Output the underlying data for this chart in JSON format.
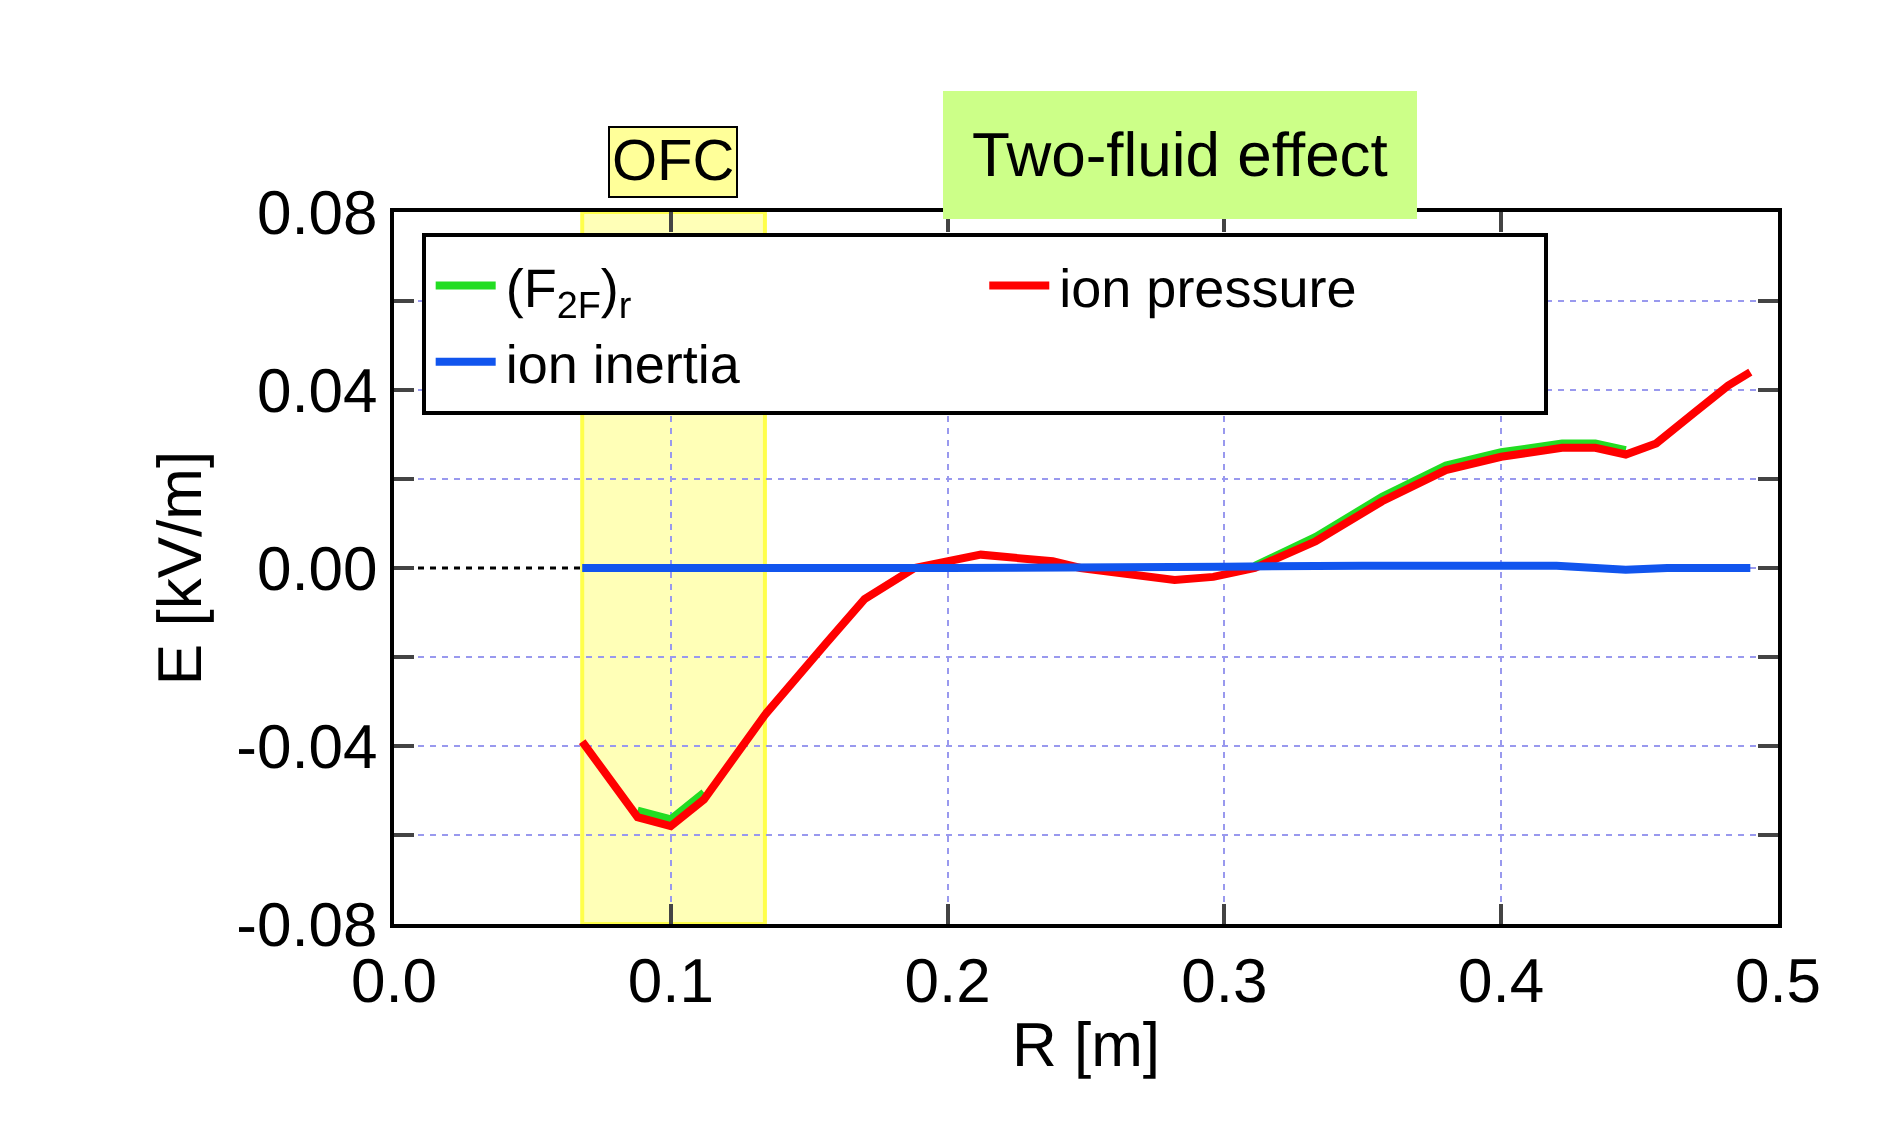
{
  "chart_data": {
    "type": "line",
    "xlabel": "R [m]",
    "ylabel": "E [kV/m]",
    "xlim": [
      0,
      0.5
    ],
    "xticks": [
      {
        "value": 0,
        "label": "0.0"
      },
      0.1,
      0.2,
      0.3,
      0.4,
      0.5
    ],
    "ylim": [
      -0.08,
      0.08
    ],
    "yticks": [
      {
        "value": -0.08,
        "label": "-0.08"
      },
      {
        "value": -0.06,
        "label": null
      },
      {
        "value": -0.04,
        "label": "-0.04"
      },
      {
        "value": -0.02,
        "label": null
      },
      {
        "value": 0,
        "label": "0.00"
      },
      {
        "value": 0.02,
        "label": null
      },
      {
        "value": 0.04,
        "label": "0.04"
      },
      {
        "value": 0.06,
        "label": null
      },
      {
        "value": 0.08,
        "label": "0.08"
      }
    ],
    "grid": true,
    "legend": "top left",
    "marker": "none",
    "annotations": [
      "Two-fluid effect"
    ],
    "bands": [
      {
        "axis": "x",
        "from": 0.068,
        "to": 0.134,
        "label": "OFC",
        "color": "#ffff99"
      }
    ],
    "series": [
      {
        "name": "(F$_{2F}$)$_{r}$",
        "color": "#22dd22",
        "line_style": "solid",
        "x": [
          0.311,
          0.333,
          0.357,
          0.38,
          0.4,
          0.422,
          0.434,
          0.445
        ],
        "values": [
          0.0005,
          0.007,
          0.016,
          0.023,
          0.026,
          0.028,
          0.028,
          0.0265
        ]
      },
      {
        "color": "#22dd22",
        "line_style": "solid",
        "x": [
          0.088,
          0.1,
          0.112
        ],
        "values": [
          -0.0545,
          -0.0565,
          -0.0505
        ]
      },
      {
        "name": "ion pressure",
        "color": "#ff0000",
        "line_style": "solid",
        "x": [
          0.068,
          0.088,
          0.1,
          0.112,
          0.134,
          0.156,
          0.17,
          0.188,
          0.212,
          0.238,
          0.248,
          0.282,
          0.296,
          0.311,
          0.333,
          0.357,
          0.38,
          0.4,
          0.422,
          0.434,
          0.445,
          0.456,
          0.47,
          0.482,
          0.49
        ],
        "values": [
          -0.039,
          -0.056,
          -0.058,
          -0.052,
          -0.033,
          -0.017,
          -0.007,
          0,
          0.003,
          0.0015,
          0,
          -0.0027,
          -0.002,
          0,
          0.006,
          0.015,
          0.022,
          0.025,
          0.027,
          0.027,
          0.0255,
          0.028,
          0.035,
          0.041,
          0.044
        ]
      },
      {
        "name": "ion inertia",
        "color": "#1155ee",
        "line_style": "solid",
        "x": [
          0.068,
          0.1,
          0.2,
          0.3,
          0.35,
          0.42,
          0.445,
          0.46,
          0.49
        ],
        "values": [
          0,
          0,
          0,
          0.0003,
          0.0005,
          0.0005,
          -0.0004,
          0,
          0
        ]
      },
      {
        "color": "#000000",
        "line_style": "dotted",
        "x": [
          0,
          0.068
        ],
        "values": [
          0,
          0
        ]
      }
    ]
  }
}
